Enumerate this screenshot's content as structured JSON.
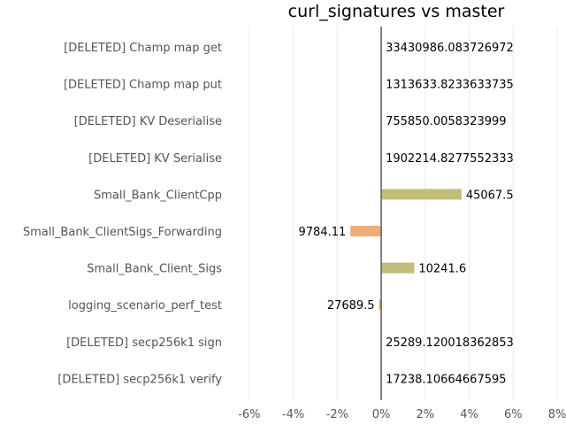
{
  "chart_data": {
    "type": "bar",
    "orientation": "horizontal",
    "title": "curl_signatures vs master",
    "xlabel": "",
    "ylabel": "",
    "xlim": [
      -7,
      8
    ],
    "grid": true,
    "colors": {
      "positive": "#c3bd79",
      "negative": "#f3ac71"
    },
    "x_ticks": [
      "-6%",
      "-4%",
      "-2%",
      "0%",
      "2%",
      "4%",
      "6%",
      "8%"
    ],
    "x_tick_values": [
      -6,
      -4,
      -2,
      0,
      2,
      4,
      6,
      8
    ],
    "categories": [
      "[DELETED] Champ map get",
      "[DELETED] Champ map put",
      "[DELETED] KV Deserialise",
      "[DELETED] KV Serialise",
      "Small_Bank_ClientCpp",
      "Small_Bank_ClientSigs_Forwarding",
      "Small_Bank_Client_Sigs",
      "logging_scenario_perf_test",
      "[DELETED] secp256k1 sign",
      "[DELETED] secp256k1 verify"
    ],
    "values": [
      0,
      0,
      0,
      0,
      3.65,
      -1.4,
      1.5,
      -0.1,
      0,
      0
    ],
    "value_labels": [
      "33430986.083726972",
      "1313633.8233633735",
      "755850.0058323999",
      "1902214.8277552333",
      "45067.5",
      "9784.11",
      "10241.6",
      "27689.5",
      "25289.120018362853",
      "17238.10664667595"
    ]
  }
}
